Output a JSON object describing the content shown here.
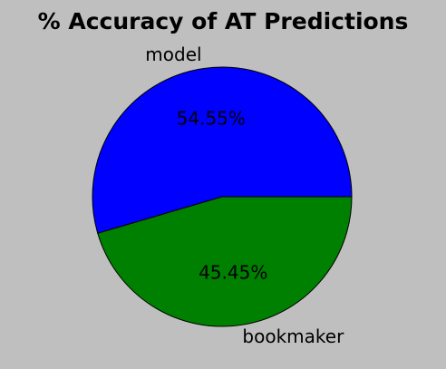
{
  "chart_data": {
    "type": "pie",
    "title": "% Accuracy of AT Predictions",
    "slices": [
      {
        "label": "model",
        "value": 54.55,
        "pct_label": "54.55%",
        "color": "#0000ff"
      },
      {
        "label": "bookmaker",
        "value": 45.45,
        "pct_label": "45.45%",
        "color": "#008000"
      }
    ],
    "start_angle_deg": 0,
    "direction": "counterclockwise",
    "edge_color": "#000000",
    "background_color": "#bfbfbf"
  }
}
